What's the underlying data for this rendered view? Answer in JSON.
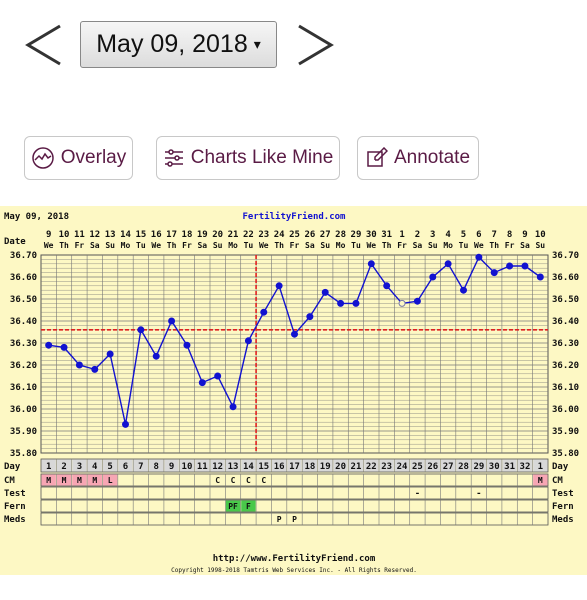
{
  "nav": {
    "prev_label": "<",
    "next_label": ">",
    "date_value": "May 09, 2018",
    "caret": "▾"
  },
  "toolbar": {
    "overlay_label": "Overlay",
    "charts_like_mine_label": "Charts Like Mine",
    "annotate_label": "Annotate"
  },
  "chart_header": {
    "date": "May 09, 2018",
    "site": "FertilityFriend.com"
  },
  "chart_footer": {
    "url": "http://www.FertilityFriend.com",
    "copyright": "Copyright 1998-2018 Tamtris Web Services Inc. - All Rights Reserved."
  },
  "colors": {
    "panel_bg": "#fdf8c4",
    "grid": "#777777",
    "series": "#1212d0",
    "coverline": "#e02020",
    "menses": "#f7a6b4",
    "fern": "#49c84a",
    "button_text": "#5a1b45"
  },
  "chart_data": {
    "type": "line",
    "title": "May 09, 2018",
    "xlabel": "Day",
    "ylabel": "",
    "ylim": [
      35.8,
      36.7
    ],
    "y_ticks": [
      "36.70",
      "36.60",
      "36.50",
      "36.40",
      "36.30",
      "36.20",
      "36.10",
      "36.00",
      "35.90",
      "35.80"
    ],
    "row_labels": {
      "date": "Date",
      "day": "Day",
      "cm": "CM",
      "test": "Test",
      "fern": "Fern",
      "meds": "Meds"
    },
    "dates": [
      "9",
      "10",
      "11",
      "12",
      "13",
      "14",
      "15",
      "16",
      "17",
      "18",
      "19",
      "20",
      "21",
      "22",
      "23",
      "24",
      "25",
      "26",
      "27",
      "28",
      "29",
      "30",
      "31",
      "1",
      "2",
      "3",
      "4",
      "5",
      "6",
      "7",
      "8",
      "9",
      "10"
    ],
    "weekdays": [
      "We",
      "Th",
      "Fr",
      "Sa",
      "Su",
      "Mo",
      "Tu",
      "We",
      "Th",
      "Fr",
      "Sa",
      "Su",
      "Mo",
      "Tu",
      "We",
      "Th",
      "Fr",
      "Sa",
      "Su",
      "Mo",
      "Tu",
      "We",
      "Th",
      "Fr",
      "Sa",
      "Su",
      "Mo",
      "Tu",
      "We",
      "Th",
      "Fr",
      "Sa",
      "Su"
    ],
    "cycle_days": [
      "1",
      "2",
      "3",
      "4",
      "5",
      "6",
      "7",
      "8",
      "9",
      "10",
      "11",
      "12",
      "13",
      "14",
      "15",
      "16",
      "17",
      "18",
      "19",
      "20",
      "21",
      "22",
      "23",
      "24",
      "25",
      "26",
      "27",
      "28",
      "29",
      "30",
      "31",
      "32",
      "1"
    ],
    "series": [
      {
        "values": [
          36.29,
          36.28,
          36.2,
          36.18,
          36.25,
          35.93,
          36.36,
          36.24,
          36.4,
          36.29,
          36.12,
          36.15,
          36.01,
          36.31,
          36.44,
          36.56,
          36.34,
          36.42,
          36.53,
          36.48,
          36.48,
          36.66,
          36.56,
          36.48,
          36.49,
          36.6,
          36.66,
          36.54,
          36.69,
          36.62,
          36.65,
          36.65,
          36.6
        ],
        "open_points": [
          23
        ]
      }
    ],
    "coverline": 36.36,
    "ovulation_day_index": 13,
    "cm": [
      "M",
      "M",
      "M",
      "M",
      "L",
      "",
      "",
      "",
      "",
      "",
      "",
      "C",
      "C",
      "C",
      "C",
      "",
      "",
      "",
      "",
      "",
      "",
      "",
      "",
      "",
      "",
      "",
      "",
      "",
      "",
      "",
      "",
      "",
      "M"
    ],
    "menses_days": [
      0,
      1,
      2,
      3,
      4,
      32
    ],
    "test": [
      "",
      "",
      "",
      "",
      "",
      "",
      "",
      "",
      "",
      "",
      "",
      "",
      "",
      "",
      "",
      "",
      "",
      "",
      "",
      "",
      "",
      "",
      "",
      "",
      "-",
      "",
      "",
      "",
      "-",
      "",
      "",
      "",
      ""
    ],
    "fern": [
      "",
      "",
      "",
      "",
      "",
      "",
      "",
      "",
      "",
      "",
      "",
      "",
      "PF",
      "F",
      "",
      "",
      "",
      "",
      "",
      "",
      "",
      "",
      "",
      "",
      "",
      "",
      "",
      "",
      "",
      "",
      "",
      "",
      ""
    ],
    "meds": [
      "",
      "",
      "",
      "",
      "",
      "",
      "",
      "",
      "",
      "",
      "",
      "",
      "",
      "",
      "",
      "P",
      "P",
      "",
      "",
      "",
      "",
      "",
      "",
      "",
      "",
      "",
      "",
      "",
      "",
      "",
      "",
      "",
      ""
    ],
    "grid": true
  }
}
